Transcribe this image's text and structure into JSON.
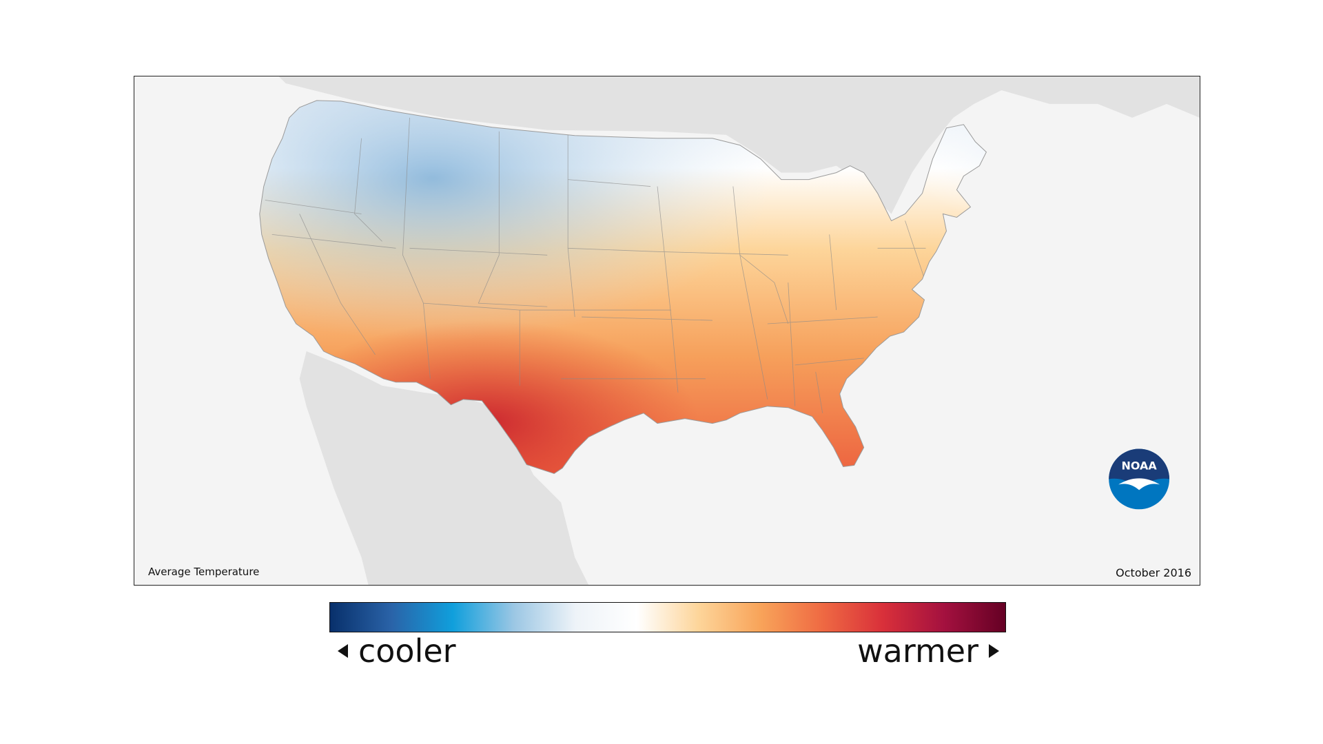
{
  "map": {
    "caption_left": "Average Temperature",
    "caption_right": "October 2016",
    "logo_text": "NOAA",
    "background_color": "#f4f4f4",
    "land_color": "#e2e2e2"
  },
  "legend": {
    "cooler_label": "cooler",
    "warmer_label": "warmer",
    "colors": [
      "#08306b",
      "#2a63a8",
      "#109fdc",
      "#9cc7e4",
      "#eef3f8",
      "#ffffff",
      "#fdd59a",
      "#f8a45a",
      "#ef6b43",
      "#d9303a",
      "#a4113f",
      "#650024"
    ]
  }
}
